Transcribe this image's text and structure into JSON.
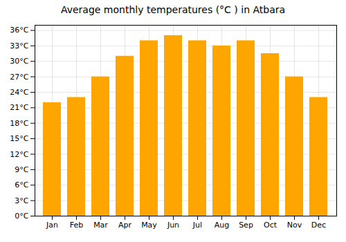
{
  "chart_data": {
    "type": "bar",
    "title": "Average monthly temperatures (°C ) in Atbara",
    "categories": [
      "Jan",
      "Feb",
      "Mar",
      "Apr",
      "May",
      "Jun",
      "Jul",
      "Aug",
      "Sep",
      "Oct",
      "Nov",
      "Dec"
    ],
    "values": [
      22,
      23,
      27,
      31,
      34,
      35,
      34,
      33,
      34,
      31.5,
      27,
      23
    ],
    "color": "#FFA500",
    "ylim": [
      0,
      37
    ],
    "yticks": [
      {
        "value": 0,
        "label": "0°C"
      },
      {
        "value": 3,
        "label": "3°C"
      },
      {
        "value": 6,
        "label": "6°C"
      },
      {
        "value": 9,
        "label": "9°C"
      },
      {
        "value": 12,
        "label": "12°C"
      },
      {
        "value": 15,
        "label": "15°C"
      },
      {
        "value": 18,
        "label": "18°C"
      },
      {
        "value": 21,
        "label": "21°C"
      },
      {
        "value": 24,
        "label": "24°C"
      },
      {
        "value": 27,
        "label": "27°C"
      },
      {
        "value": 30,
        "label": "30°C"
      },
      {
        "value": 33,
        "label": "33°C"
      },
      {
        "value": 36,
        "label": "36°C"
      }
    ],
    "grid": true
  }
}
